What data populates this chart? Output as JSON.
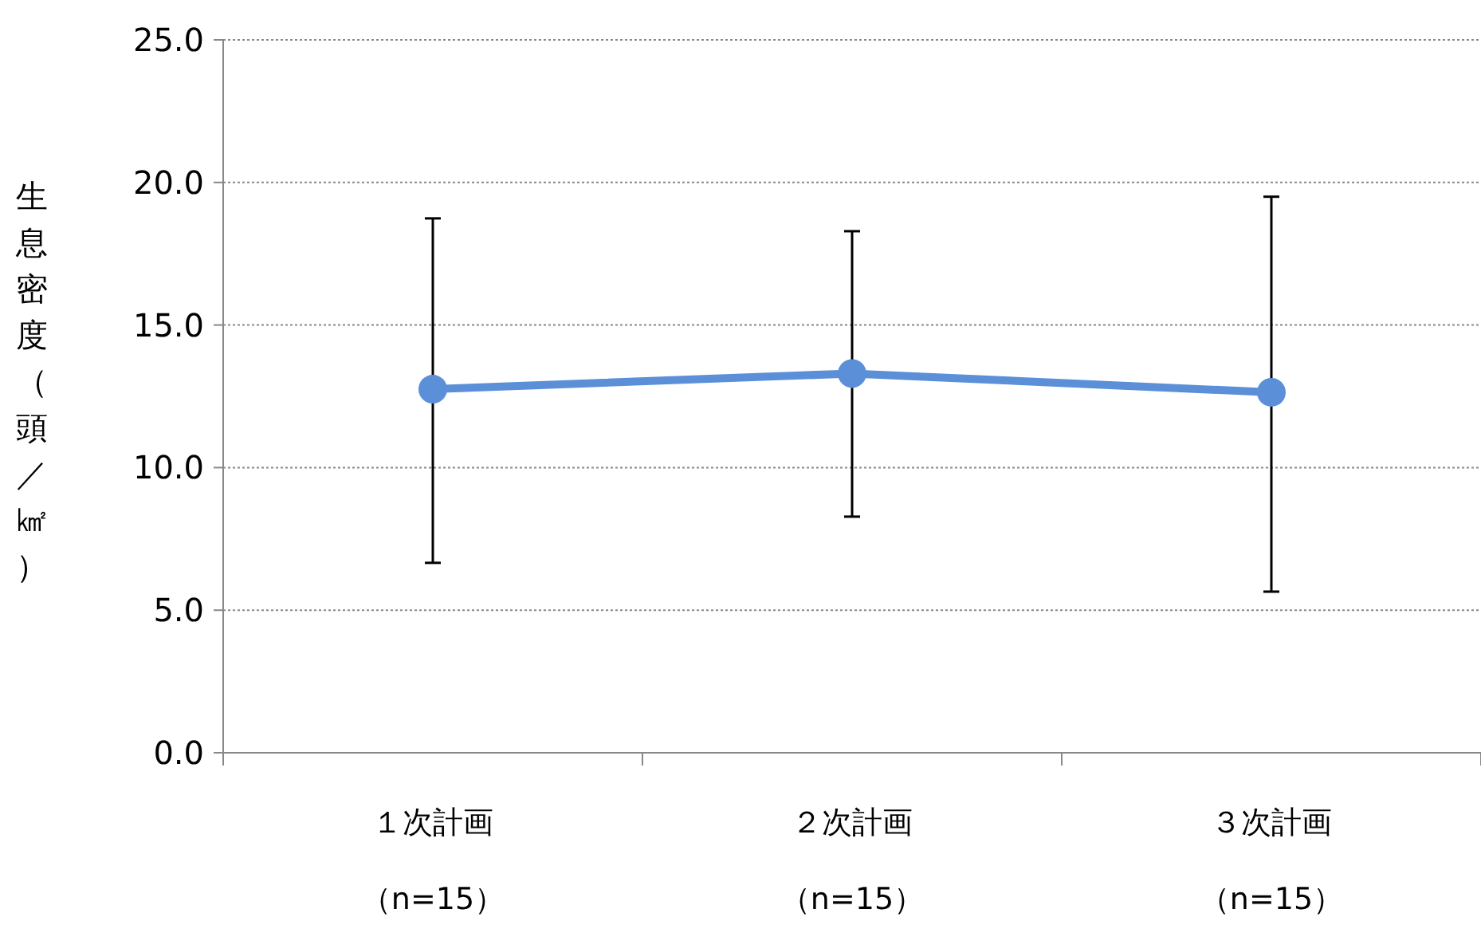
{
  "chart_data": {
    "type": "line",
    "ylabel": "生息密度（頭／㎢）",
    "categories": [
      "１次計画（n=15）",
      "２次計画（n=15）",
      "３次計画（n=15）"
    ],
    "series": [
      {
        "color": "#5b8fd8",
        "values": [
          12.75,
          13.3,
          12.64
        ],
        "errors": [
          [
            6.66,
            18.74
          ],
          [
            8.28,
            18.29
          ],
          [
            5.65,
            19.5
          ]
        ]
      }
    ],
    "ylim": [
      0,
      25
    ],
    "yticks": [
      {
        "value": 0,
        "label": "0.0"
      },
      {
        "value": 5,
        "label": "5.0"
      },
      {
        "value": 10,
        "label": "10.0"
      },
      {
        "value": 15,
        "label": "15.0"
      },
      {
        "value": 20,
        "label": "20.0"
      },
      {
        "value": 25,
        "label": "25.0"
      }
    ],
    "grid": "y",
    "marker": "circle",
    "line_style": "solid"
  }
}
